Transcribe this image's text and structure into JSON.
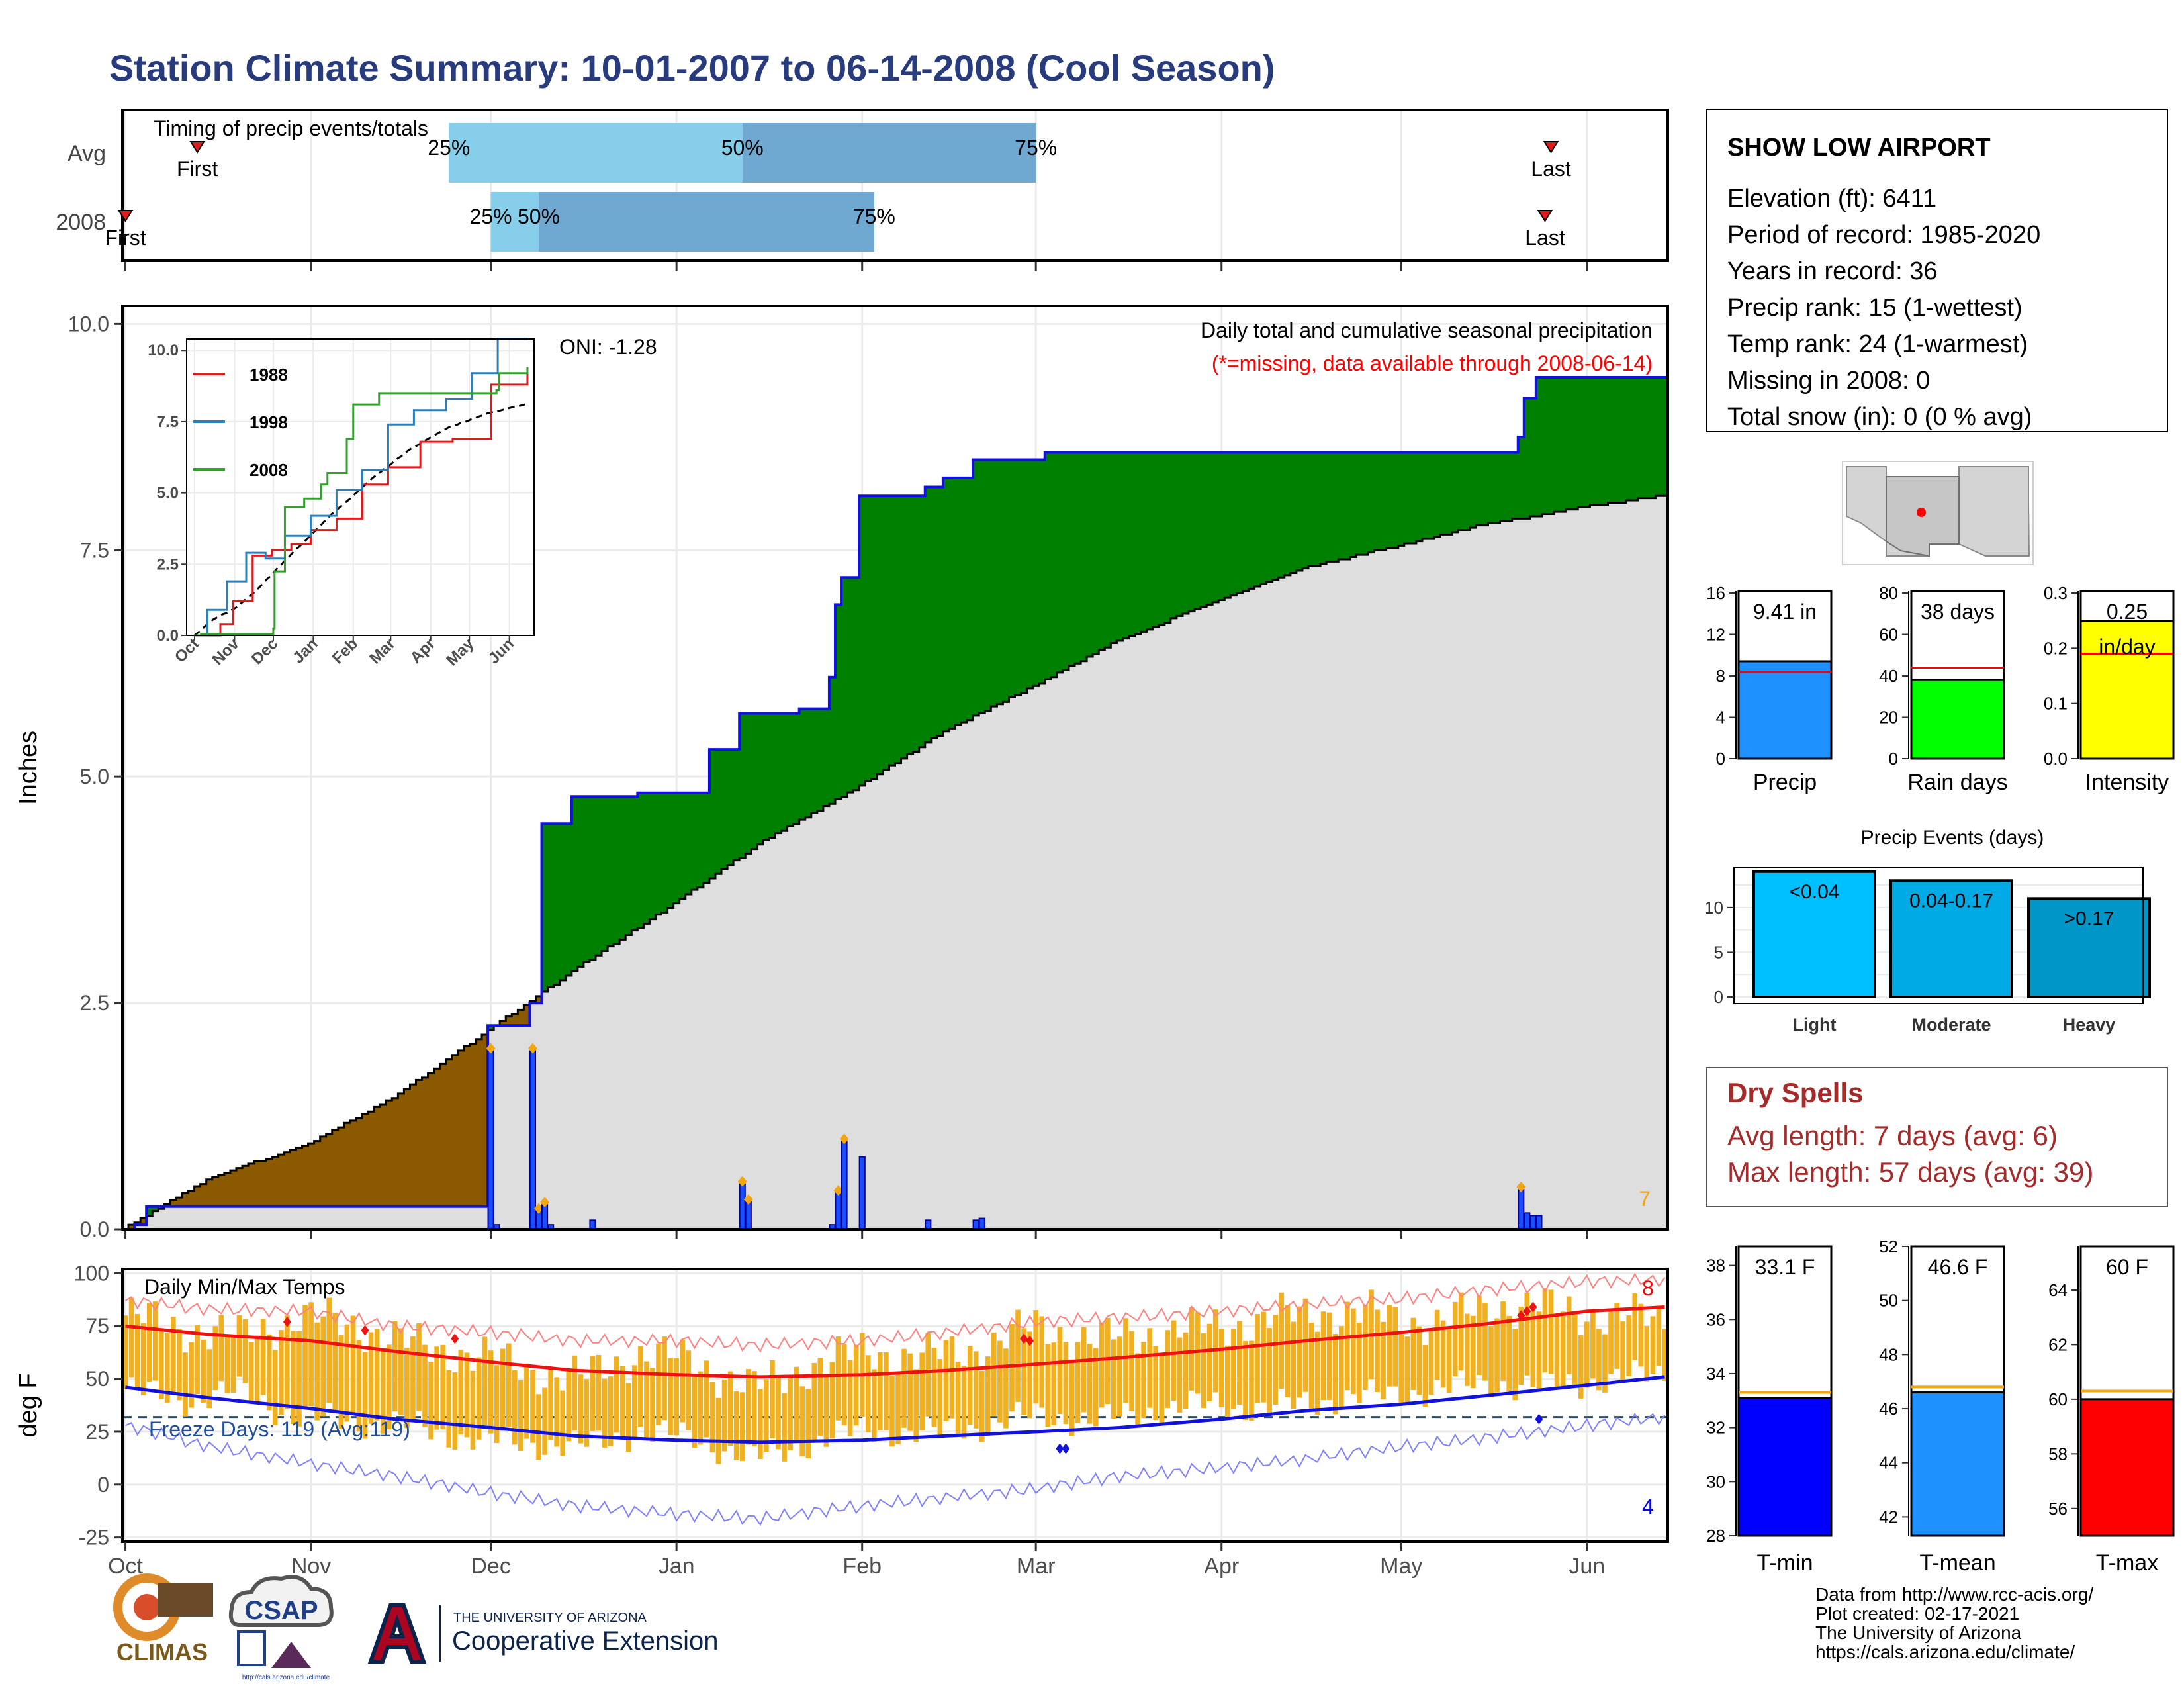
{
  "title": "Station Climate Summary: 10-01-2007 to 06-14-2008 (Cool Season)",
  "timing": {
    "panel_label": "Timing of precip events/totals",
    "rows": [
      {
        "name": "Avg",
        "first_label": "First",
        "last_label": "Last",
        "p25": "25%",
        "p50": "50%",
        "p75": "75%",
        "first_date": "2007-10-13",
        "last_date": "2008-05-26",
        "p25_date": "2007-11-24",
        "p50_date": "2008-01-12",
        "p75_date": "2008-03-01"
      },
      {
        "name": "2008",
        "first_label": "First",
        "last_label": "Last",
        "p25": "25%",
        "p50": "50%",
        "p75": "75%",
        "first_date": "2007-10-01",
        "last_date": "2008-05-25",
        "p25_date": "2007-12-01",
        "p50_date": "2007-12-09",
        "p75_date": "2008-02-03"
      }
    ]
  },
  "months": [
    "Oct",
    "Nov",
    "Dec",
    "Jan",
    "Feb",
    "Mar",
    "Apr",
    "May",
    "Jun"
  ],
  "month_starts": [
    "2007-10-01",
    "2007-11-01",
    "2007-12-01",
    "2008-01-01",
    "2008-02-01",
    "2008-03-01",
    "2008-04-01",
    "2008-05-01",
    "2008-06-01"
  ],
  "date_range": [
    "2007-10-01",
    "2008-06-14"
  ],
  "precip": {
    "ylabel": "Inches",
    "yticks": [
      "0.0",
      "2.5",
      "5.0",
      "7.5",
      "10.0"
    ],
    "title": "Daily total and cumulative seasonal precipitation",
    "note": "(*=missing, data available through 2008-06-14)",
    "oni": "ONI: -1.28",
    "corner_value": "7"
  },
  "inset": {
    "yticks": [
      "0.0",
      "2.5",
      "5.0",
      "7.5",
      "10.0"
    ],
    "months": [
      "Oct",
      "Nov",
      "Dec",
      "Jan",
      "Feb",
      "Mar",
      "Apr",
      "May",
      "Jun"
    ],
    "legend": [
      {
        "name": "1988",
        "color": "#e31a1c"
      },
      {
        "name": "1998",
        "color": "#2c7fb8"
      },
      {
        "name": "2008",
        "color": "#33a02c"
      }
    ]
  },
  "temps": {
    "ylabel": "deg F",
    "yticks": [
      "-25",
      "0",
      "25",
      "50",
      "75",
      "100"
    ],
    "label": "Daily Min/Max Temps",
    "freeze": "Freeze Days: 119 (Avg:119)",
    "top_right": "8",
    "bottom_right": "4"
  },
  "station": {
    "name": "SHOW LOW AIRPORT",
    "lines": [
      "Elevation (ft): 6411",
      "Period of record: 1985-2020",
      "Years in record: 36",
      "Precip rank: 15 (1-wettest)",
      "Temp rank: 24 (1-warmest)",
      "Missing in 2008: 0",
      "Total snow (in): 0 (0 % avg)"
    ]
  },
  "summary_bars": [
    {
      "label": "Precip",
      "value_label": "9.41 in",
      "value": 9.41,
      "avg": 8.4,
      "ymax": 16,
      "ticks": [
        "0",
        "4",
        "8",
        "12",
        "16"
      ],
      "color": "#1e90ff"
    },
    {
      "label": "Rain days",
      "value_label": "38 days",
      "value": 38,
      "avg": 44,
      "ymax": 80,
      "ticks": [
        "0",
        "20",
        "40",
        "60",
        "80"
      ],
      "color": "#00ff00"
    },
    {
      "label": "Intensity",
      "value_label": "0.25",
      "value_label2": "in/day",
      "value": 0.25,
      "avg": 0.19,
      "ymax": 0.3,
      "ticks": [
        "0.0",
        "0.1",
        "0.2",
        "0.3"
      ],
      "color": "#ffff00"
    }
  ],
  "events": {
    "title": "Precip Events (days)",
    "yticks": [
      "0",
      "5",
      "10"
    ],
    "bars": [
      {
        "name": "Light",
        "label": "<0.04",
        "value": 14,
        "color": "#00bfff"
      },
      {
        "name": "Moderate",
        "label": "0.04-0.17",
        "value": 13,
        "color": "#00aae4"
      },
      {
        "name": "Heavy",
        "label": ">0.17",
        "value": 11,
        "color": "#0096c8"
      }
    ]
  },
  "dry_spells": {
    "title": "Dry Spells",
    "avg_line": "Avg length: 7 days (avg: 6)",
    "max_line": "Max length: 57 days (avg: 39)"
  },
  "temp_bars": [
    {
      "label": "T-min",
      "value_label": "33.1 F",
      "value": 33.1,
      "avg": 33.3,
      "ymin": 28,
      "ymax": 38.7,
      "ticks": [
        "28",
        "30",
        "32",
        "34",
        "36",
        "38"
      ],
      "color": "#0000ff"
    },
    {
      "label": "T-mean",
      "value_label": "46.6 F",
      "value": 46.6,
      "avg": 46.8,
      "ymin": 41.3,
      "ymax": 52,
      "ticks": [
        "42",
        "44",
        "46",
        "48",
        "50",
        "52"
      ],
      "color": "#1e90ff"
    },
    {
      "label": "T-max",
      "value_label": "60 F",
      "value": 60,
      "avg": 60.3,
      "ymin": 55,
      "ymax": 65.6,
      "ticks": [
        "56",
        "58",
        "60",
        "62",
        "64"
      ],
      "color": "#ff0000"
    }
  ],
  "footer": {
    "credits": [
      "Data from http://www.rcc-acis.org/",
      "Plot created: 02-17-2021",
      "The University of Arizona",
      "https://cals.arizona.edu/climate/"
    ],
    "logo_climas": "CLIMAS",
    "logo_csap": "CSAP",
    "logo_csap_url": "http://cals.arizona.edu/climate",
    "logo_ua_top": "THE UNIVERSITY OF ARIZONA",
    "logo_ua_bottom": "Cooperative Extension"
  },
  "chart_data": [
    {
      "type": "area",
      "title": "Daily total and cumulative seasonal precipitation",
      "ylabel": "Inches",
      "ylim": [
        0,
        10.2
      ],
      "series": [
        {
          "name": "2008",
          "x": [
            "2007-10-01",
            "2007-10-03",
            "2007-10-05",
            "2007-11-30",
            "2007-12-01",
            "2007-12-08",
            "2007-12-10",
            "2007-12-15",
            "2007-12-26",
            "2008-01-07",
            "2008-01-12",
            "2008-01-22",
            "2008-01-27",
            "2008-01-28",
            "2008-01-29",
            "2008-02-01",
            "2008-02-12",
            "2008-02-15",
            "2008-02-20",
            "2008-03-03",
            "2008-05-21",
            "2008-05-22",
            "2008-05-24",
            "2008-06-14"
          ],
          "values": [
            0.0,
            0.05,
            0.25,
            0.25,
            2.25,
            2.5,
            4.48,
            4.78,
            4.82,
            5.3,
            5.7,
            5.75,
            6.1,
            6.9,
            7.2,
            8.1,
            8.2,
            8.3,
            8.5,
            8.58,
            8.75,
            9.18,
            9.41,
            9.41
          ]
        },
        {
          "name": "Avg",
          "x": [
            "2007-10-01",
            "2007-10-15",
            "2007-11-01",
            "2007-11-15",
            "2007-12-01",
            "2007-12-15",
            "2008-01-01",
            "2008-01-15",
            "2008-02-01",
            "2008-02-15",
            "2008-03-01",
            "2008-03-15",
            "2008-04-01",
            "2008-04-15",
            "2008-05-01",
            "2008-05-15",
            "2008-06-01",
            "2008-06-14"
          ],
          "values": [
            0.0,
            0.55,
            0.95,
            1.45,
            2.2,
            2.85,
            3.6,
            4.25,
            4.9,
            5.5,
            6.0,
            6.5,
            6.95,
            7.3,
            7.55,
            7.78,
            7.98,
            8.1
          ]
        }
      ]
    },
    {
      "type": "bar",
      "title": "Daily precipitation",
      "ylabel": "Inches",
      "x": [
        "2007-12-01",
        "2007-12-02",
        "2007-12-08",
        "2007-12-09",
        "2007-12-10",
        "2007-12-11",
        "2007-12-18",
        "2008-01-12",
        "2008-01-13",
        "2008-01-27",
        "2008-01-28",
        "2008-01-29",
        "2008-02-01",
        "2008-02-12",
        "2008-02-20",
        "2008-02-21",
        "2008-05-21",
        "2008-05-22",
        "2008-05-23",
        "2008-05-24"
      ],
      "values": [
        1.97,
        0.05,
        1.97,
        0.2,
        0.27,
        0.05,
        0.1,
        0.5,
        0.3,
        0.05,
        0.4,
        0.97,
        0.8,
        0.1,
        0.1,
        0.12,
        0.44,
        0.18,
        0.15,
        0.15
      ]
    },
    {
      "type": "line",
      "title": "Daily Min/Max Temps",
      "ylabel": "deg F",
      "ylim": [
        -27,
        102
      ],
      "x": [
        "2007-10-01",
        "2007-10-15",
        "2007-11-01",
        "2007-11-15",
        "2007-12-01",
        "2007-12-15",
        "2008-01-01",
        "2008-01-15",
        "2008-02-01",
        "2008-02-15",
        "2008-03-01",
        "2008-03-15",
        "2008-04-01",
        "2008-04-15",
        "2008-05-01",
        "2008-05-15",
        "2008-06-01",
        "2008-06-14"
      ],
      "series": [
        {
          "name": "Avg max",
          "values": [
            75,
            71,
            68,
            63,
            58,
            54,
            52,
            51,
            52,
            54,
            57,
            60,
            64,
            68,
            72,
            76,
            82,
            84
          ]
        },
        {
          "name": "Avg min",
          "values": [
            46,
            41,
            36,
            31,
            27,
            23,
            21,
            20,
            21,
            23,
            25,
            27,
            31,
            35,
            38,
            42,
            47,
            51
          ]
        },
        {
          "name": "Record max",
          "values": [
            87,
            83,
            82,
            75,
            72,
            68,
            68,
            66,
            68,
            72,
            77,
            79,
            82,
            85,
            88,
            92,
            96,
            97
          ]
        },
        {
          "name": "Record min",
          "values": [
            28,
            18,
            10,
            4,
            -4,
            -10,
            -14,
            -16,
            -10,
            -6,
            -2,
            4,
            8,
            12,
            18,
            22,
            28,
            32
          ]
        }
      ],
      "daily_max": [
        80,
        74,
        70,
        79,
        76,
        66,
        62,
        55,
        50,
        62,
        58,
        45,
        56,
        63,
        60,
        65,
        75,
        68,
        72,
        74,
        78,
        82,
        80,
        76,
        85,
        83,
        80,
        78
      ],
      "daily_min": [
        45,
        40,
        44,
        32,
        30,
        28,
        22,
        20,
        18,
        25,
        22,
        12,
        20,
        26,
        24,
        28,
        33,
        30,
        35,
        38,
        36,
        40,
        42,
        45,
        48,
        46,
        50,
        52
      ]
    },
    {
      "type": "bar",
      "title": "Precip Events (days)",
      "categories": [
        "Light",
        "Moderate",
        "Heavy"
      ],
      "values": [
        14,
        13,
        11
      ]
    }
  ]
}
